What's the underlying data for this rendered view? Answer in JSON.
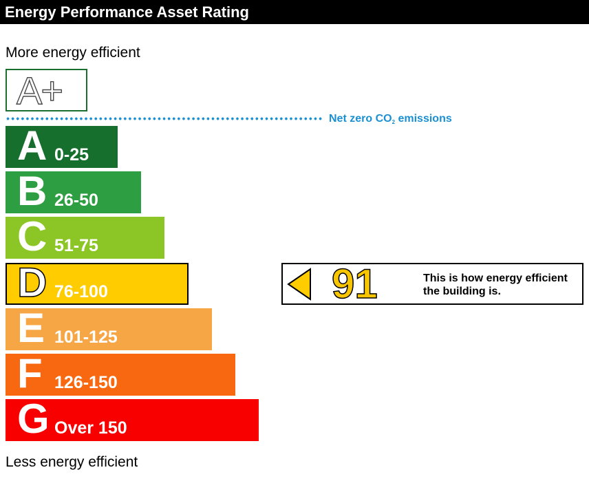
{
  "header": {
    "title": "Energy Performance Asset Rating"
  },
  "labels": {
    "top": "More energy efficient",
    "bottom": "Less energy efficient",
    "aplus": "A+",
    "net_zero_prefix": "Net zero CO",
    "net_zero_sub": "2",
    "net_zero_suffix": " emissions"
  },
  "chart_data": {
    "type": "bar",
    "categories": [
      "A",
      "B",
      "C",
      "D",
      "E",
      "F",
      "G"
    ],
    "ranges": [
      "0-25",
      "26-50",
      "51-75",
      "76-100",
      "101-125",
      "126-150",
      "Over 150"
    ],
    "colors": [
      "#176f2d",
      "#2e9e43",
      "#8cc626",
      "#ffcc00",
      "#f7a646",
      "#f86811",
      "#f80000"
    ],
    "current_band": "D"
  },
  "indicator": {
    "score": "91",
    "text": "This is how energy efficient the building is.",
    "color": "#ffcc00"
  }
}
